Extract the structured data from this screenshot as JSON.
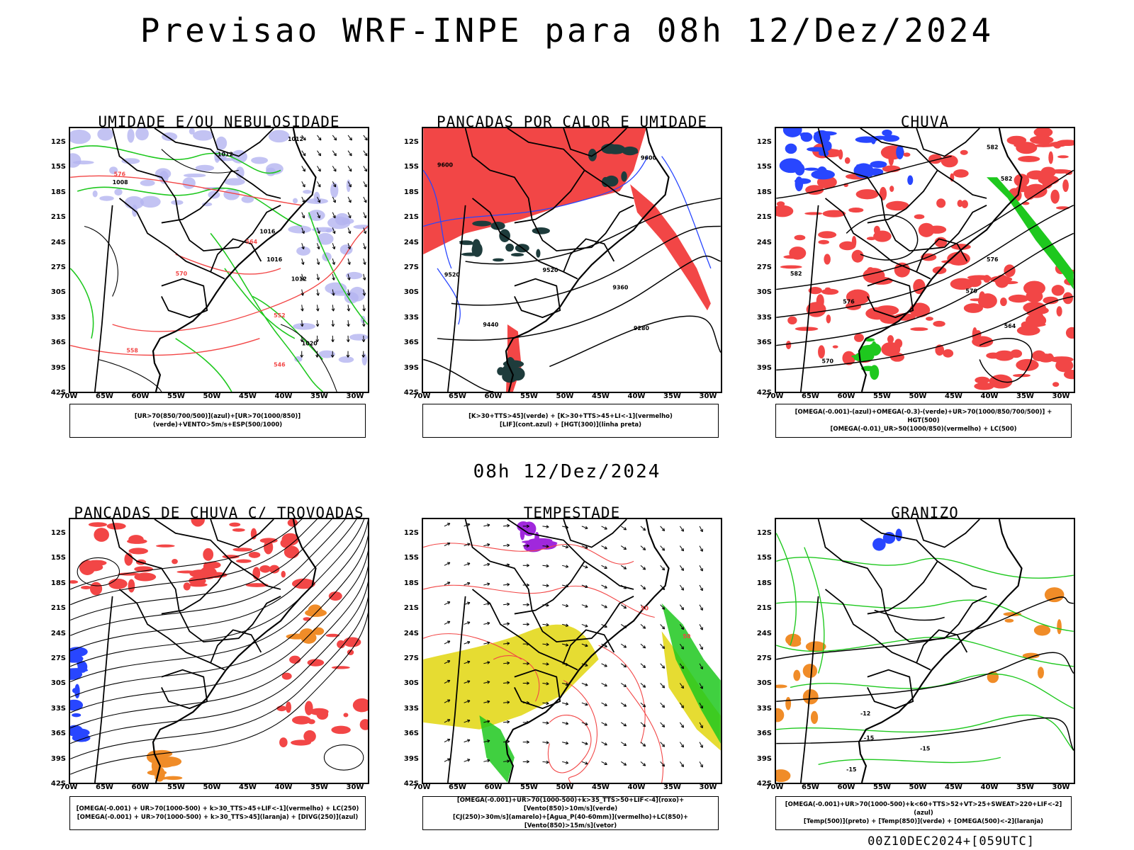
{
  "header": {
    "title": "Previsao WRF-INPE  para 08h 12/Dez/2024",
    "subtitle": "08h 12/Dez/2024",
    "footer": "00Z10DEC2024+[059UTC]"
  },
  "axes": {
    "lat_labels": [
      "12S",
      "15S",
      "18S",
      "21S",
      "24S",
      "27S",
      "30S",
      "33S",
      "36S",
      "39S",
      "42S"
    ],
    "lon_labels": [
      "70W",
      "65W",
      "60W",
      "55W",
      "50W",
      "45W",
      "40W",
      "35W",
      "30W"
    ]
  },
  "panels": [
    {
      "title": "UMIDADE E/OU NEBULOSIDADE",
      "legend": [
        "[UR>70(850/700/500)](azul)+[UR>70(1000/850)](verde)+VENTO>5m/s+ESP(500/1000)"
      ],
      "labels": [
        "1012",
        "1012",
        "1008",
        "1016",
        "1016",
        "1020",
        "1012",
        "576",
        "570",
        "564",
        "558",
        "552",
        "546"
      ]
    },
    {
      "title": "PANCADAS POR CALOR E UMIDADE",
      "legend": [
        "[K>30+TTS>45](verde) + [K>30+TTS>45+LI<-1](vermelho)",
        "[LIF](cont.azul) + [HGT(300)](linha preta)"
      ],
      "labels": [
        "9600",
        "9520",
        "9440",
        "9360",
        "9280",
        "9600",
        "9520"
      ]
    },
    {
      "title": "CHUVA",
      "legend": [
        "[OMEGA(-0.001)-(azul)+OMEGA(-0.3)-(verde)+UR>70(1000/850/700/500)] + HGT(500)",
        "[OMEGA(-0.01)_UR>50(1000/850)(vermelho) + LC(500)"
      ],
      "labels": [
        "582",
        "582",
        "576",
        "570",
        "564",
        "570",
        "576",
        "582"
      ]
    },
    {
      "title": "PANCADAS DE CHUVA C/ TROVOADAS",
      "legend": [
        "[OMEGA(-0.001) + UR>70(1000-500) + k>30_TTS>45+LIF<-1](vermelho) + LC(250)",
        "[OMEGA(-0.001) + UR>70(1000-500) + k>30_TTS>45](laranja) + [DIVG(250)](azul)"
      ],
      "labels": []
    },
    {
      "title": "TEMPESTADE",
      "legend": [
        "[OMEGA(-0.001)+UR>70(1000-500)+k>35_TTS>50+LIF<-4](roxo)+[Vento(850)>10m/s](verde)",
        "[CJ(250)>30m/s](amarelo)+[Agua_P(40-60mm)](vermelho)+LC(850)+[Vento(850)>15m/s](vetor)"
      ],
      "labels": [
        "50",
        "50"
      ]
    },
    {
      "title": "GRANIZO",
      "legend": [
        "[OMEGA(-0.001)+UR>70(1000-500)+k<60+TTS>52+VT>25+SWEAT>220+LIF<-2](azul)",
        "[Temp(500)](preto) + [Temp(850)](verde) + [OMEGA(500)<-2](laranja)"
      ],
      "labels": [
        "-15",
        "-15",
        "-15",
        "-12"
      ]
    }
  ],
  "colors": {
    "red": "#f24646",
    "green": "#1ec81e",
    "blue": "#2846ff",
    "lavender": "#b4b4f0",
    "yellow": "#e6dc32",
    "orange": "#f08c28",
    "purple": "#a028dc",
    "darkteal": "#1e3c3c"
  }
}
